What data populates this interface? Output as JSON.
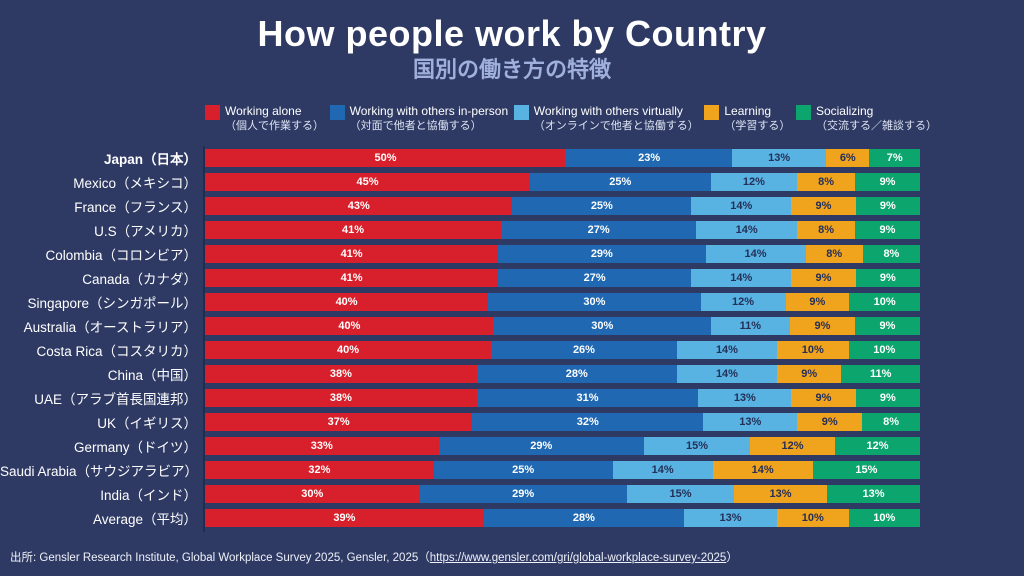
{
  "header": {
    "title": "How people work by Country",
    "subtitle": "国別の働き方の特徴"
  },
  "theme": {
    "background": "#2e3a64",
    "title_color": "#ffffff",
    "subtitle_color": "#9fb0dc"
  },
  "chart_data": {
    "type": "bar",
    "variant": "horizontal-stacked-100",
    "title": "How people work by Country",
    "subtitle": "国別の働き方の特徴",
    "legend_position": "top",
    "unit": "%",
    "series_legend": [
      {
        "label_en": "Working alone",
        "label_jp": "（個人で作業する）",
        "color": "#d7202c",
        "text_color": "#ffffff"
      },
      {
        "label_en": "Working with others in-person",
        "label_jp": "（対面で他者と協働する）",
        "color": "#2068b2",
        "text_color": "#ffffff"
      },
      {
        "label_en": "Working with others virtually",
        "label_jp": "（オンラインで他者と協働する）",
        "color": "#58b2e2",
        "text_color": "#243058"
      },
      {
        "label_en": "Learning",
        "label_jp": "（学習する）",
        "color": "#f0a31c",
        "text_color": "#243058"
      },
      {
        "label_en": "Socializing",
        "label_jp": "（交流する／雑談する）",
        "color": "#0ca56e",
        "text_color": "#ffffff"
      }
    ],
    "rows": [
      {
        "country_en": "Japan",
        "country_jp": "（日本）",
        "emphasis": true,
        "values": [
          50,
          23,
          13,
          6,
          7
        ]
      },
      {
        "country_en": "Mexico",
        "country_jp": "（メキシコ）",
        "emphasis": false,
        "values": [
          45,
          25,
          12,
          8,
          9
        ]
      },
      {
        "country_en": "France",
        "country_jp": "（フランス）",
        "emphasis": false,
        "values": [
          43,
          25,
          14,
          9,
          9
        ]
      },
      {
        "country_en": "U.S",
        "country_jp": "（アメリカ）",
        "emphasis": false,
        "values": [
          41,
          27,
          14,
          8,
          9
        ]
      },
      {
        "country_en": "Colombia",
        "country_jp": "（コロンビア）",
        "emphasis": false,
        "values": [
          41,
          29,
          14,
          8,
          8
        ]
      },
      {
        "country_en": "Canada",
        "country_jp": "（カナダ）",
        "emphasis": false,
        "values": [
          41,
          27,
          14,
          9,
          9
        ]
      },
      {
        "country_en": "Singapore",
        "country_jp": "（シンガポール）",
        "emphasis": false,
        "values": [
          40,
          30,
          12,
          9,
          10
        ]
      },
      {
        "country_en": "Australia",
        "country_jp": "（オーストラリア）",
        "emphasis": false,
        "values": [
          40,
          30,
          11,
          9,
          9
        ]
      },
      {
        "country_en": "Costa Rica",
        "country_jp": "（コスタリカ）",
        "emphasis": false,
        "values": [
          40,
          26,
          14,
          10,
          10
        ]
      },
      {
        "country_en": "China",
        "country_jp": "（中国）",
        "emphasis": false,
        "values": [
          38,
          28,
          14,
          9,
          11
        ]
      },
      {
        "country_en": "UAE",
        "country_jp": "（アラブ首長国連邦）",
        "emphasis": false,
        "values": [
          38,
          31,
          13,
          9,
          9
        ]
      },
      {
        "country_en": "UK",
        "country_jp": "（イギリス）",
        "emphasis": false,
        "values": [
          37,
          32,
          13,
          9,
          8
        ]
      },
      {
        "country_en": "Germany",
        "country_jp": "（ドイツ）",
        "emphasis": false,
        "values": [
          33,
          29,
          15,
          12,
          12
        ]
      },
      {
        "country_en": "Saudi Arabia",
        "country_jp": "（サウジアラビア）",
        "emphasis": false,
        "values": [
          32,
          25,
          14,
          14,
          15
        ]
      },
      {
        "country_en": "India",
        "country_jp": "（インド）",
        "emphasis": false,
        "values": [
          30,
          29,
          15,
          13,
          13
        ]
      },
      {
        "country_en": "Average",
        "country_jp": "（平均）",
        "emphasis": false,
        "values": [
          39,
          28,
          13,
          10,
          10
        ]
      }
    ]
  },
  "footer": {
    "prefix": "出所: Gensler Research Institute, Global Workplace Survey 2025, Gensler, 2025（",
    "link_text": "https://www.gensler.com/gri/global-workplace-survey-2025",
    "suffix": "）"
  }
}
